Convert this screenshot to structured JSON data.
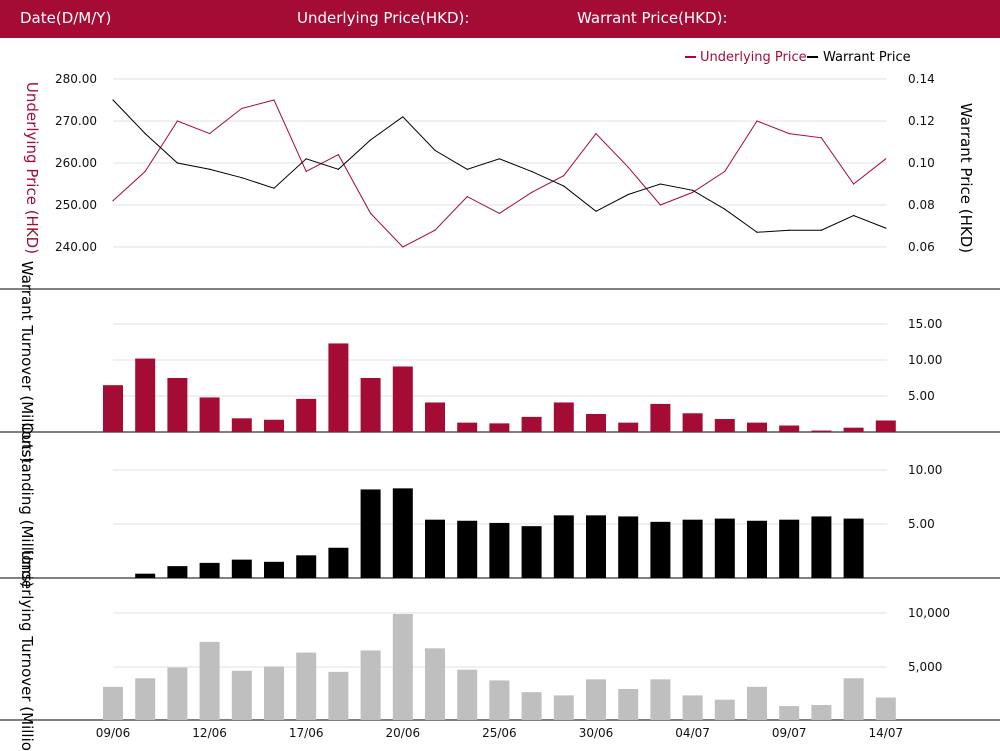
{
  "header": {
    "date_label": "Date(D/M/Y)",
    "underlying_label": "Underlying Price(HKD):",
    "warrant_label": "Warrant Price(HKD):"
  },
  "legend": {
    "underlying": "Underlying Price",
    "warrant": "Warrant Price"
  },
  "colors": {
    "header_bg": "#a50c35",
    "underlying": "#a50c35",
    "warrant": "#000000",
    "turnover_bar": "#a50c35",
    "outstanding_bar": "#000000",
    "underlying_turnover_bar": "#bfbfbf"
  },
  "chart_data": [
    {
      "type": "line",
      "series": [
        {
          "name": "Underlying Price",
          "axis": "left",
          "values": [
            251,
            258,
            270,
            267,
            273,
            275,
            258,
            262,
            248,
            240,
            244,
            252,
            248,
            253,
            257,
            267,
            259,
            250,
            253,
            258,
            270,
            267,
            266,
            255,
            261
          ]
        },
        {
          "name": "Warrant Price",
          "axis": "right",
          "values": [
            0.13,
            0.114,
            0.1,
            0.097,
            0.093,
            0.088,
            0.102,
            0.097,
            0.111,
            0.122,
            0.106,
            0.097,
            0.102,
            0.096,
            0.089,
            0.077,
            0.085,
            0.09,
            0.087,
            0.078,
            0.067,
            0.068,
            0.068,
            0.075,
            0.069
          ]
        }
      ],
      "ylabel_left": "Underlying Price (HKD)",
      "ylabel_right": "Warrant  Price (HKD)",
      "ylim_left": [
        235,
        285
      ],
      "yticks_left": [
        "280.00",
        "270.00",
        "260.00",
        "250.00",
        "240.00"
      ],
      "ylim_right": [
        0.05,
        0.15
      ],
      "yticks_right": [
        "0.14",
        "0.12",
        "0.10",
        "0.08",
        "0.06"
      ],
      "legend_position": "top-right",
      "grid": true
    },
    {
      "type": "bar",
      "ylabel": "Warrant  Turnover (Millions)",
      "yticks": [
        "15.00",
        "10.00",
        "5.00"
      ],
      "ylim": [
        0,
        15
      ],
      "values": [
        6.5,
        10.2,
        7.5,
        4.8,
        1.9,
        1.7,
        4.6,
        12.3,
        7.5,
        9.1,
        4.1,
        1.3,
        1.2,
        2.1,
        4.1,
        2.5,
        1.3,
        3.9,
        2.6,
        1.8,
        1.3,
        0.9,
        0.2,
        0.6,
        1.6
      ],
      "grid": true
    },
    {
      "type": "bar",
      "ylabel": "Outstanding (Millions)",
      "yticks": [
        "10.00",
        "5.00"
      ],
      "ylim": [
        0,
        10
      ],
      "values": [
        0,
        0.4,
        1.1,
        1.4,
        1.7,
        1.5,
        2.1,
        2.8,
        8.2,
        8.3,
        5.4,
        5.3,
        5.1,
        4.8,
        5.8,
        5.8,
        5.7,
        5.2,
        5.4,
        5.5,
        5.3,
        5.4,
        5.7,
        5.5,
        0
      ],
      "grid": true
    },
    {
      "type": "bar",
      "ylabel": "Underlying Turnover (Millions)",
      "yticks": [
        "10,000",
        "5,000"
      ],
      "ylim": [
        0,
        10000
      ],
      "values": [
        3100,
        3900,
        4900,
        7300,
        4600,
        5000,
        6300,
        4500,
        6500,
        9900,
        6700,
        4700,
        3700,
        2600,
        2300,
        3800,
        2900,
        3800,
        2300,
        1900,
        3100,
        1300,
        1400,
        3900,
        2100
      ],
      "grid": true
    }
  ],
  "x_axis": {
    "tick_labels": [
      {
        "index": 0,
        "label": "09/06"
      },
      {
        "index": 3,
        "label": "12/06"
      },
      {
        "index": 6,
        "label": "17/06"
      },
      {
        "index": 9,
        "label": "20/06"
      },
      {
        "index": 12,
        "label": "25/06"
      },
      {
        "index": 15,
        "label": "30/06"
      },
      {
        "index": 18,
        "label": "04/07"
      },
      {
        "index": 21,
        "label": "09/07"
      },
      {
        "index": 24,
        "label": "14/07"
      }
    ]
  }
}
